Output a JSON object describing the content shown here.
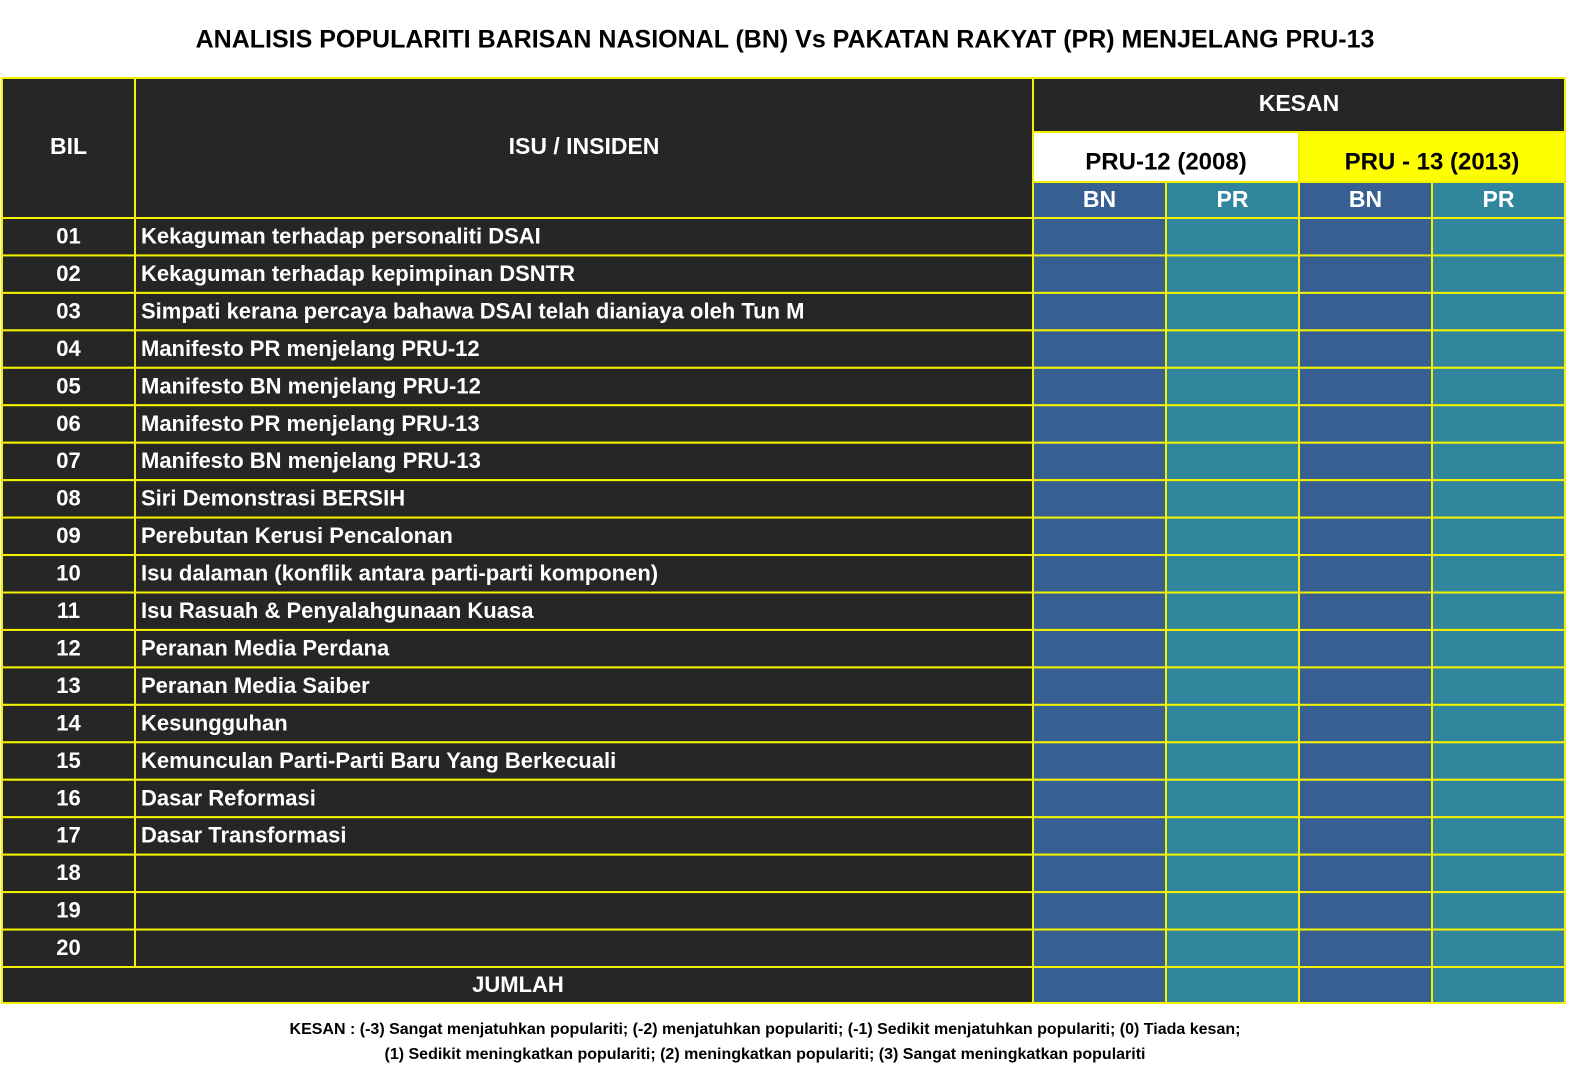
{
  "title": "ANALISIS POPULARITI BARISAN NASIONAL (BN) Vs PAKATAN RAKYAT (PR) MENJELANG PRU-13",
  "table": {
    "header": {
      "bil": "BIL",
      "issue": "ISU / INSIDEN",
      "kesan": "KESAN",
      "pru12": "PRU-12 (2008)",
      "pru13": "PRU - 13 (2013)",
      "sub": [
        "BN",
        "PR",
        "BN",
        "PR"
      ]
    },
    "rows": [
      {
        "bil": "01",
        "issue": "Kekaguman terhadap personaliti DSAI"
      },
      {
        "bil": "02",
        "issue": "Kekaguman terhadap kepimpinan DSNTR"
      },
      {
        "bil": "03",
        "issue": "Simpati kerana percaya bahawa DSAI telah dianiaya oleh Tun M"
      },
      {
        "bil": "04",
        "issue": "Manifesto PR menjelang PRU-12"
      },
      {
        "bil": "05",
        "issue": "Manifesto BN menjelang PRU-12"
      },
      {
        "bil": "06",
        "issue": "Manifesto PR menjelang PRU-13"
      },
      {
        "bil": "07",
        "issue": "Manifesto BN menjelang PRU-13"
      },
      {
        "bil": "08",
        "issue": "Siri Demonstrasi BERSIH"
      },
      {
        "bil": "09",
        "issue": "Perebutan Kerusi Pencalonan"
      },
      {
        "bil": "10",
        "issue": "Isu dalaman (konflik antara parti-parti komponen)"
      },
      {
        "bil": "11",
        "issue": "Isu Rasuah & Penyalahgunaan Kuasa"
      },
      {
        "bil": "12",
        "issue": "Peranan Media Perdana"
      },
      {
        "bil": "13",
        "issue": "Peranan Media Saiber"
      },
      {
        "bil": "14",
        "issue": "Kesungguhan"
      },
      {
        "bil": "15",
        "issue": "Kemunculan Parti-Parti Baru Yang Berkecuali"
      },
      {
        "bil": "16",
        "issue": "Dasar Reformasi"
      },
      {
        "bil": "17",
        "issue": "Dasar Transformasi"
      },
      {
        "bil": "18"
      },
      {
        "bil": "19"
      },
      {
        "bil": "20"
      }
    ],
    "total": "JUMLAH"
  },
  "legend": [
    "KESAN : (-3) Sangat menjatuhkan populariti; (-2) menjatuhkan populariti; (-1) Sedikit menjatuhkan populariti; (0) Tiada kesan;",
    "(1) Sedikit meningkatkan populariti; (2) meningkatkan populariti; (3) Sangat meningkatkan populariti"
  ]
}
